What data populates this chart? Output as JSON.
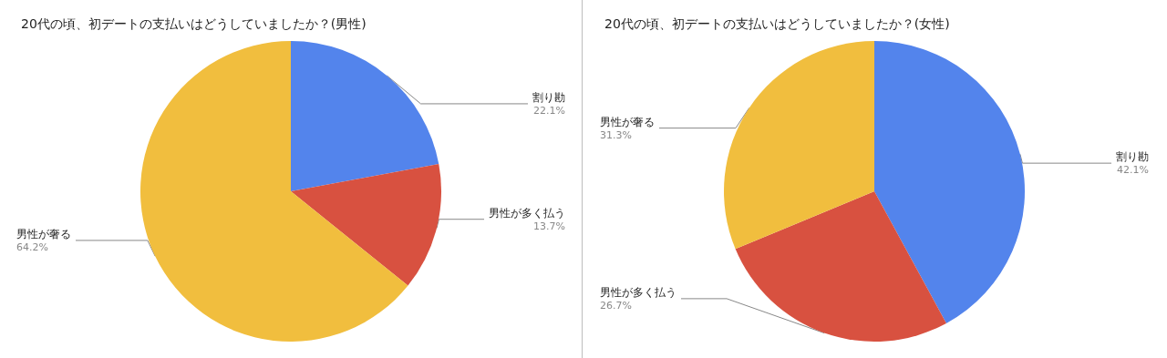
{
  "chart_data": [
    {
      "type": "pie",
      "title": "20代の頃、初デートの支払いはどうしていましたか？(男性)",
      "categories": [
        "割り勘",
        "男性が多く払う",
        "男性が奢る"
      ],
      "values": [
        22.1,
        13.7,
        64.2
      ],
      "colors": [
        "#5384ec",
        "#d85140",
        "#f1be3e"
      ],
      "value_labels": [
        "22.1%",
        "13.7%",
        "64.2%"
      ],
      "legend": false
    },
    {
      "type": "pie",
      "title": "20代の頃、初デートの支払いはどうしていましたか？(女性)",
      "categories": [
        "割り勘",
        "男性が多く払う",
        "男性が奢る"
      ],
      "values": [
        42.1,
        26.7,
        31.3
      ],
      "colors": [
        "#5384ec",
        "#d85140",
        "#f1be3e"
      ],
      "value_labels": [
        "42.1%",
        "26.7%",
        "31.3%"
      ],
      "legend": false
    }
  ]
}
